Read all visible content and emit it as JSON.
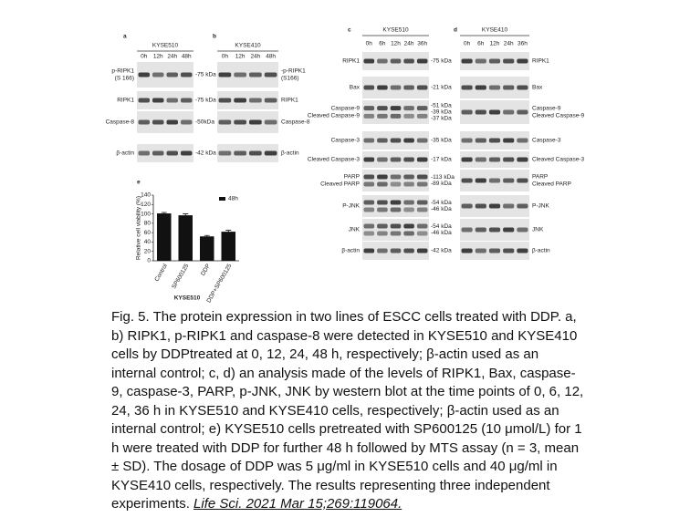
{
  "panels": [
    {
      "letter": "a",
      "cell_line": "KYSE510",
      "times": [
        "0h",
        "12h",
        "24h",
        "48h"
      ],
      "rows": [
        {
          "labels": [
            "p-RIPK1",
            "(S 166)"
          ],
          "markers": [
            "-75 kDa"
          ]
        },
        {
          "labels": [
            "RIPK1"
          ],
          "markers": [
            "-75 kDa"
          ]
        },
        {
          "labels": [
            "Caspase-8"
          ],
          "markers": [
            "-50kDa"
          ]
        },
        {
          "labels": [
            "β-actin"
          ],
          "markers": [
            "-42 kDa"
          ]
        }
      ]
    },
    {
      "letter": "b",
      "cell_line": "KYSE410",
      "times": [
        "0h",
        "12h",
        "24h",
        "48h"
      ],
      "rows": [
        {
          "labels": [
            "-p-RIPK1",
            "(S166)"
          ],
          "markers": []
        },
        {
          "labels": [
            "RIPK1"
          ],
          "markers": []
        },
        {
          "labels": [
            "Caspase-8"
          ],
          "markers": []
        },
        {
          "labels": [
            "β-actin"
          ],
          "markers": []
        }
      ]
    },
    {
      "letter": "c",
      "cell_line": "KYSE510",
      "times": [
        "0h",
        "6h",
        "12h",
        "24h",
        "36h"
      ],
      "rows": [
        {
          "labels": [
            "RIPK1"
          ],
          "markers": [
            "-75 kDa"
          ]
        },
        {
          "labels": [
            "Bax"
          ],
          "markers": [
            "-21 kDa"
          ]
        },
        {
          "labels": [
            "Caspase-9",
            "Cleaved Caspase-9"
          ],
          "markers": [
            "-51 kDa",
            "-39 kDa",
            "-37 kDa"
          ]
        },
        {
          "labels": [
            "Caspase-3"
          ],
          "markers": [
            "-35 kDa"
          ]
        },
        {
          "labels": [
            "Cleaved Caspase-3"
          ],
          "markers": [
            "-17 kDa"
          ]
        },
        {
          "labels": [
            "PARP",
            "Cleaved PARP"
          ],
          "markers": [
            "-113 kDa",
            "-89 kDa"
          ]
        },
        {
          "labels": [
            "P-JNK"
          ],
          "markers": [
            "-54 kDa",
            "-46 kDa"
          ]
        },
        {
          "labels": [
            "JNK"
          ],
          "markers": [
            "-54 kDa",
            "-46 kDa"
          ]
        },
        {
          "labels": [
            "β-actin"
          ],
          "markers": [
            "-42 kDa"
          ]
        }
      ]
    },
    {
      "letter": "d",
      "cell_line": "KYSE410",
      "times": [
        "0h",
        "6h",
        "12h",
        "24h",
        "36h"
      ],
      "rows": [
        {
          "labels": [
            "RIPK1"
          ],
          "markers": []
        },
        {
          "labels": [
            "Bax"
          ],
          "markers": []
        },
        {
          "labels": [
            "Caspase-9",
            "Cleaved Caspase-9"
          ],
          "markers": []
        },
        {
          "labels": [
            "Caspase-3"
          ],
          "markers": []
        },
        {
          "labels": [
            "Cleaved Caspase-3"
          ],
          "markers": []
        },
        {
          "labels": [
            "PARP",
            "Cleaved PARP"
          ],
          "markers": []
        },
        {
          "labels": [
            "P-JNK"
          ],
          "markers": []
        },
        {
          "labels": [
            "JNK"
          ],
          "markers": []
        },
        {
          "labels": [
            "β-actin"
          ],
          "markers": []
        }
      ]
    }
  ],
  "chart_data": {
    "type": "bar",
    "panel_label": "e",
    "ylabel": "Relative cell viability (%)",
    "xlabel": "KYSE510",
    "categories": [
      "Control",
      "SP600125",
      "DDP",
      "DDP+SP600125"
    ],
    "series": [
      {
        "name": "48h",
        "color": "#111111",
        "values": [
          101,
          97,
          52,
          62
        ],
        "errors": [
          2,
          3,
          2,
          3
        ]
      }
    ],
    "ylim": [
      0,
      140
    ],
    "yticks": [
      0,
      20,
      40,
      60,
      80,
      100,
      120,
      140
    ]
  },
  "caption": {
    "text": "Fig. 5. The protein expression in two lines of ESCC cells treated with DDP. a, b) RIPK1, p-RIPK1 and caspase-8 were detected in KYSE510 and KYSE410 cells by DDPtreated at 0, 12, 24, 48 h, respectively; β-actin used as an internal control; c, d) an analysis made of the levels of RIPK1, Bax, caspase-9, caspase-3, PARP, p-JNK, JNK by western blot at the time points of 0, 6, 12, 24, 36 h in KYSE510 and KYSE410 cells, respectively; β-actin used as an internal control; e) KYSE510 cells pretreated with SP600125 (10 μmol/L) for 1 h were treated with DDP for further 48 h followed by MTS assay (n = 3, mean ± SD). The dosage of DDP was 5 μg/ml in KYSE510 cells and 40 μg/ml in KYSE410 cells, respectively. The results representing three independent experiments.",
    "citation": "Life Sci. 2021 Mar 15;269:119064."
  }
}
